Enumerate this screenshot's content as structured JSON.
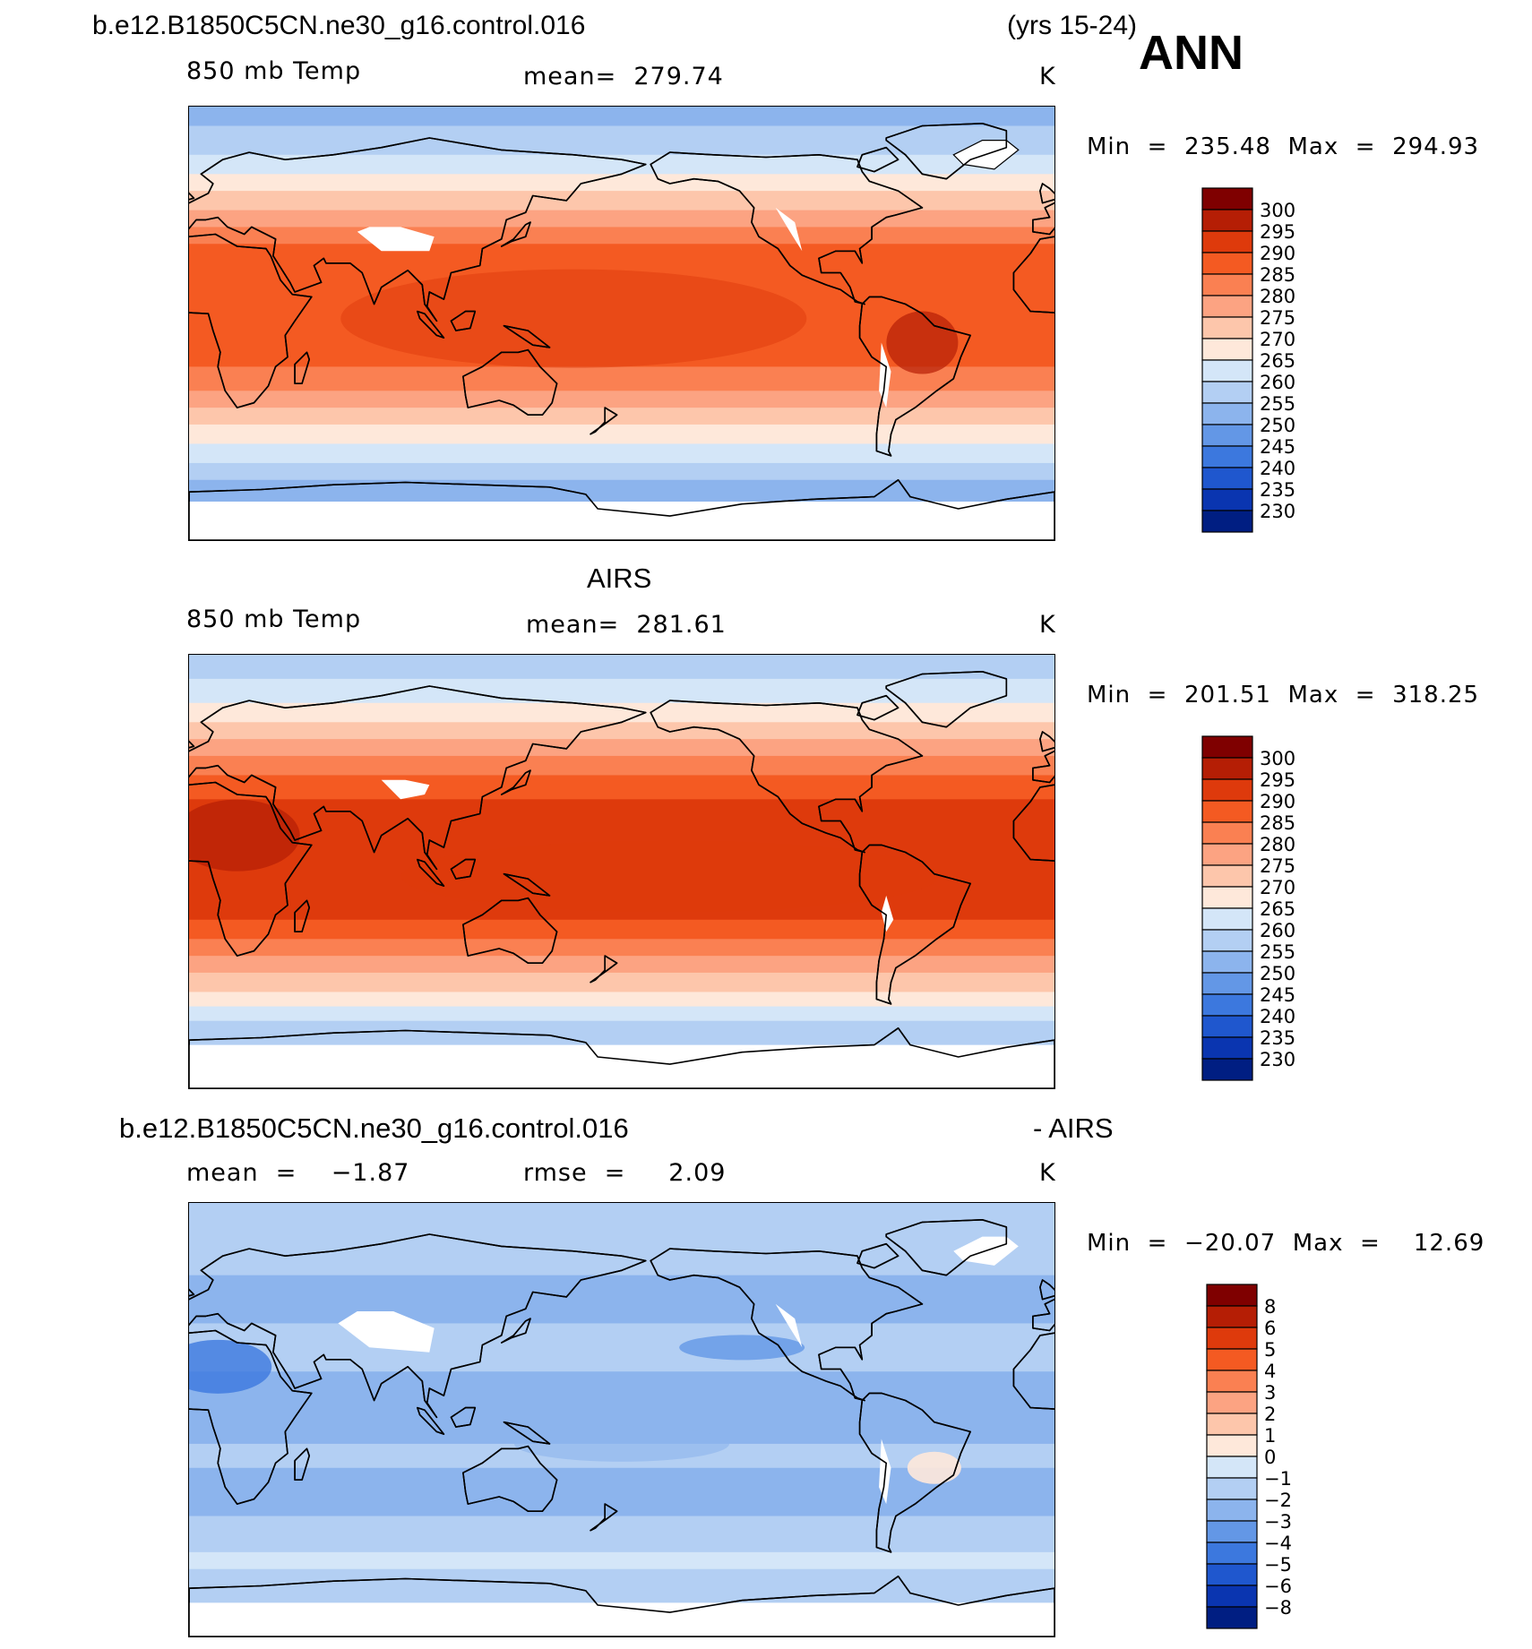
{
  "header": {
    "case_name": "b.e12.B1850C5CN.ne30_g16.control.016",
    "years": "(yrs 15-24)",
    "season": "ANN"
  },
  "panels": [
    {
      "title": "",
      "variable": "850 mb Temp",
      "mean_text": "mean=  279.74",
      "units": "K",
      "minmax": "Min  =  235.48  Max  =  294.93"
    },
    {
      "title": "AIRS",
      "variable": "850 mb Temp",
      "mean_text": "mean=  281.61",
      "units": "K",
      "minmax": "Min  =  201.51  Max  =  318.25"
    },
    {
      "title": "b.e12.B1850C5CN.ne30_g16.control.016",
      "title_suffix": "- AIRS",
      "mean_text": "mean  =    −1.87",
      "rmse_text": "rmse  =     2.09",
      "units": "K",
      "minmax": "Min  =  −20.07  Max  =    12.69"
    }
  ],
  "chart_data": [
    {
      "type": "heatmap",
      "title": "b.e12.B1850C5CN.ne30_g16.control.016 (yrs 15-24) ANN",
      "subtitle": "850 mb Temp",
      "mean": 279.74,
      "units": "K",
      "min": 235.48,
      "max": 294.93,
      "colorbar_levels": [
        "300",
        "295",
        "290",
        "285",
        "280",
        "275",
        "270",
        "265",
        "260",
        "255",
        "250",
        "245",
        "240",
        "235",
        "230"
      ],
      "colorbar_colors": [
        "#7f0000",
        "#b51e05",
        "#de3a0c",
        "#f45a22",
        "#fa8052",
        "#fca382",
        "#fdc6ab",
        "#fee8da",
        "#d4e6f8",
        "#b3cff3",
        "#8cb4ed",
        "#6397e6",
        "#3c78de",
        "#1f57ce",
        "#0a35b0",
        "#001e82"
      ]
    },
    {
      "type": "heatmap",
      "title": "AIRS",
      "subtitle": "850 mb Temp",
      "mean": 281.61,
      "units": "K",
      "min": 201.51,
      "max": 318.25,
      "colorbar_levels": [
        "300",
        "295",
        "290",
        "285",
        "280",
        "275",
        "270",
        "265",
        "260",
        "255",
        "250",
        "245",
        "240",
        "235",
        "230"
      ],
      "colorbar_colors": [
        "#7f0000",
        "#b51e05",
        "#de3a0c",
        "#f45a22",
        "#fa8052",
        "#fca382",
        "#fdc6ab",
        "#fee8da",
        "#d4e6f8",
        "#b3cff3",
        "#8cb4ed",
        "#6397e6",
        "#3c78de",
        "#1f57ce",
        "#0a35b0",
        "#001e82"
      ]
    },
    {
      "type": "heatmap",
      "title": "b.e12.B1850C5CN.ne30_g16.control.016 - AIRS",
      "mean": -1.87,
      "rmse": 2.09,
      "units": "K",
      "min": -20.07,
      "max": 12.69,
      "colorbar_levels": [
        "8",
        "6",
        "5",
        "4",
        "3",
        "2",
        "1",
        "0",
        "−1",
        "−2",
        "−3",
        "−4",
        "−5",
        "−6",
        "−8"
      ],
      "colorbar_colors": [
        "#7f0000",
        "#b51e05",
        "#de3a0c",
        "#f45a22",
        "#fa8052",
        "#fca382",
        "#fdc6ab",
        "#fee8da",
        "#d4e6f8",
        "#b3cff3",
        "#8cb4ed",
        "#6397e6",
        "#3c78de",
        "#1f57ce",
        "#0a35b0",
        "#001e82"
      ]
    }
  ]
}
